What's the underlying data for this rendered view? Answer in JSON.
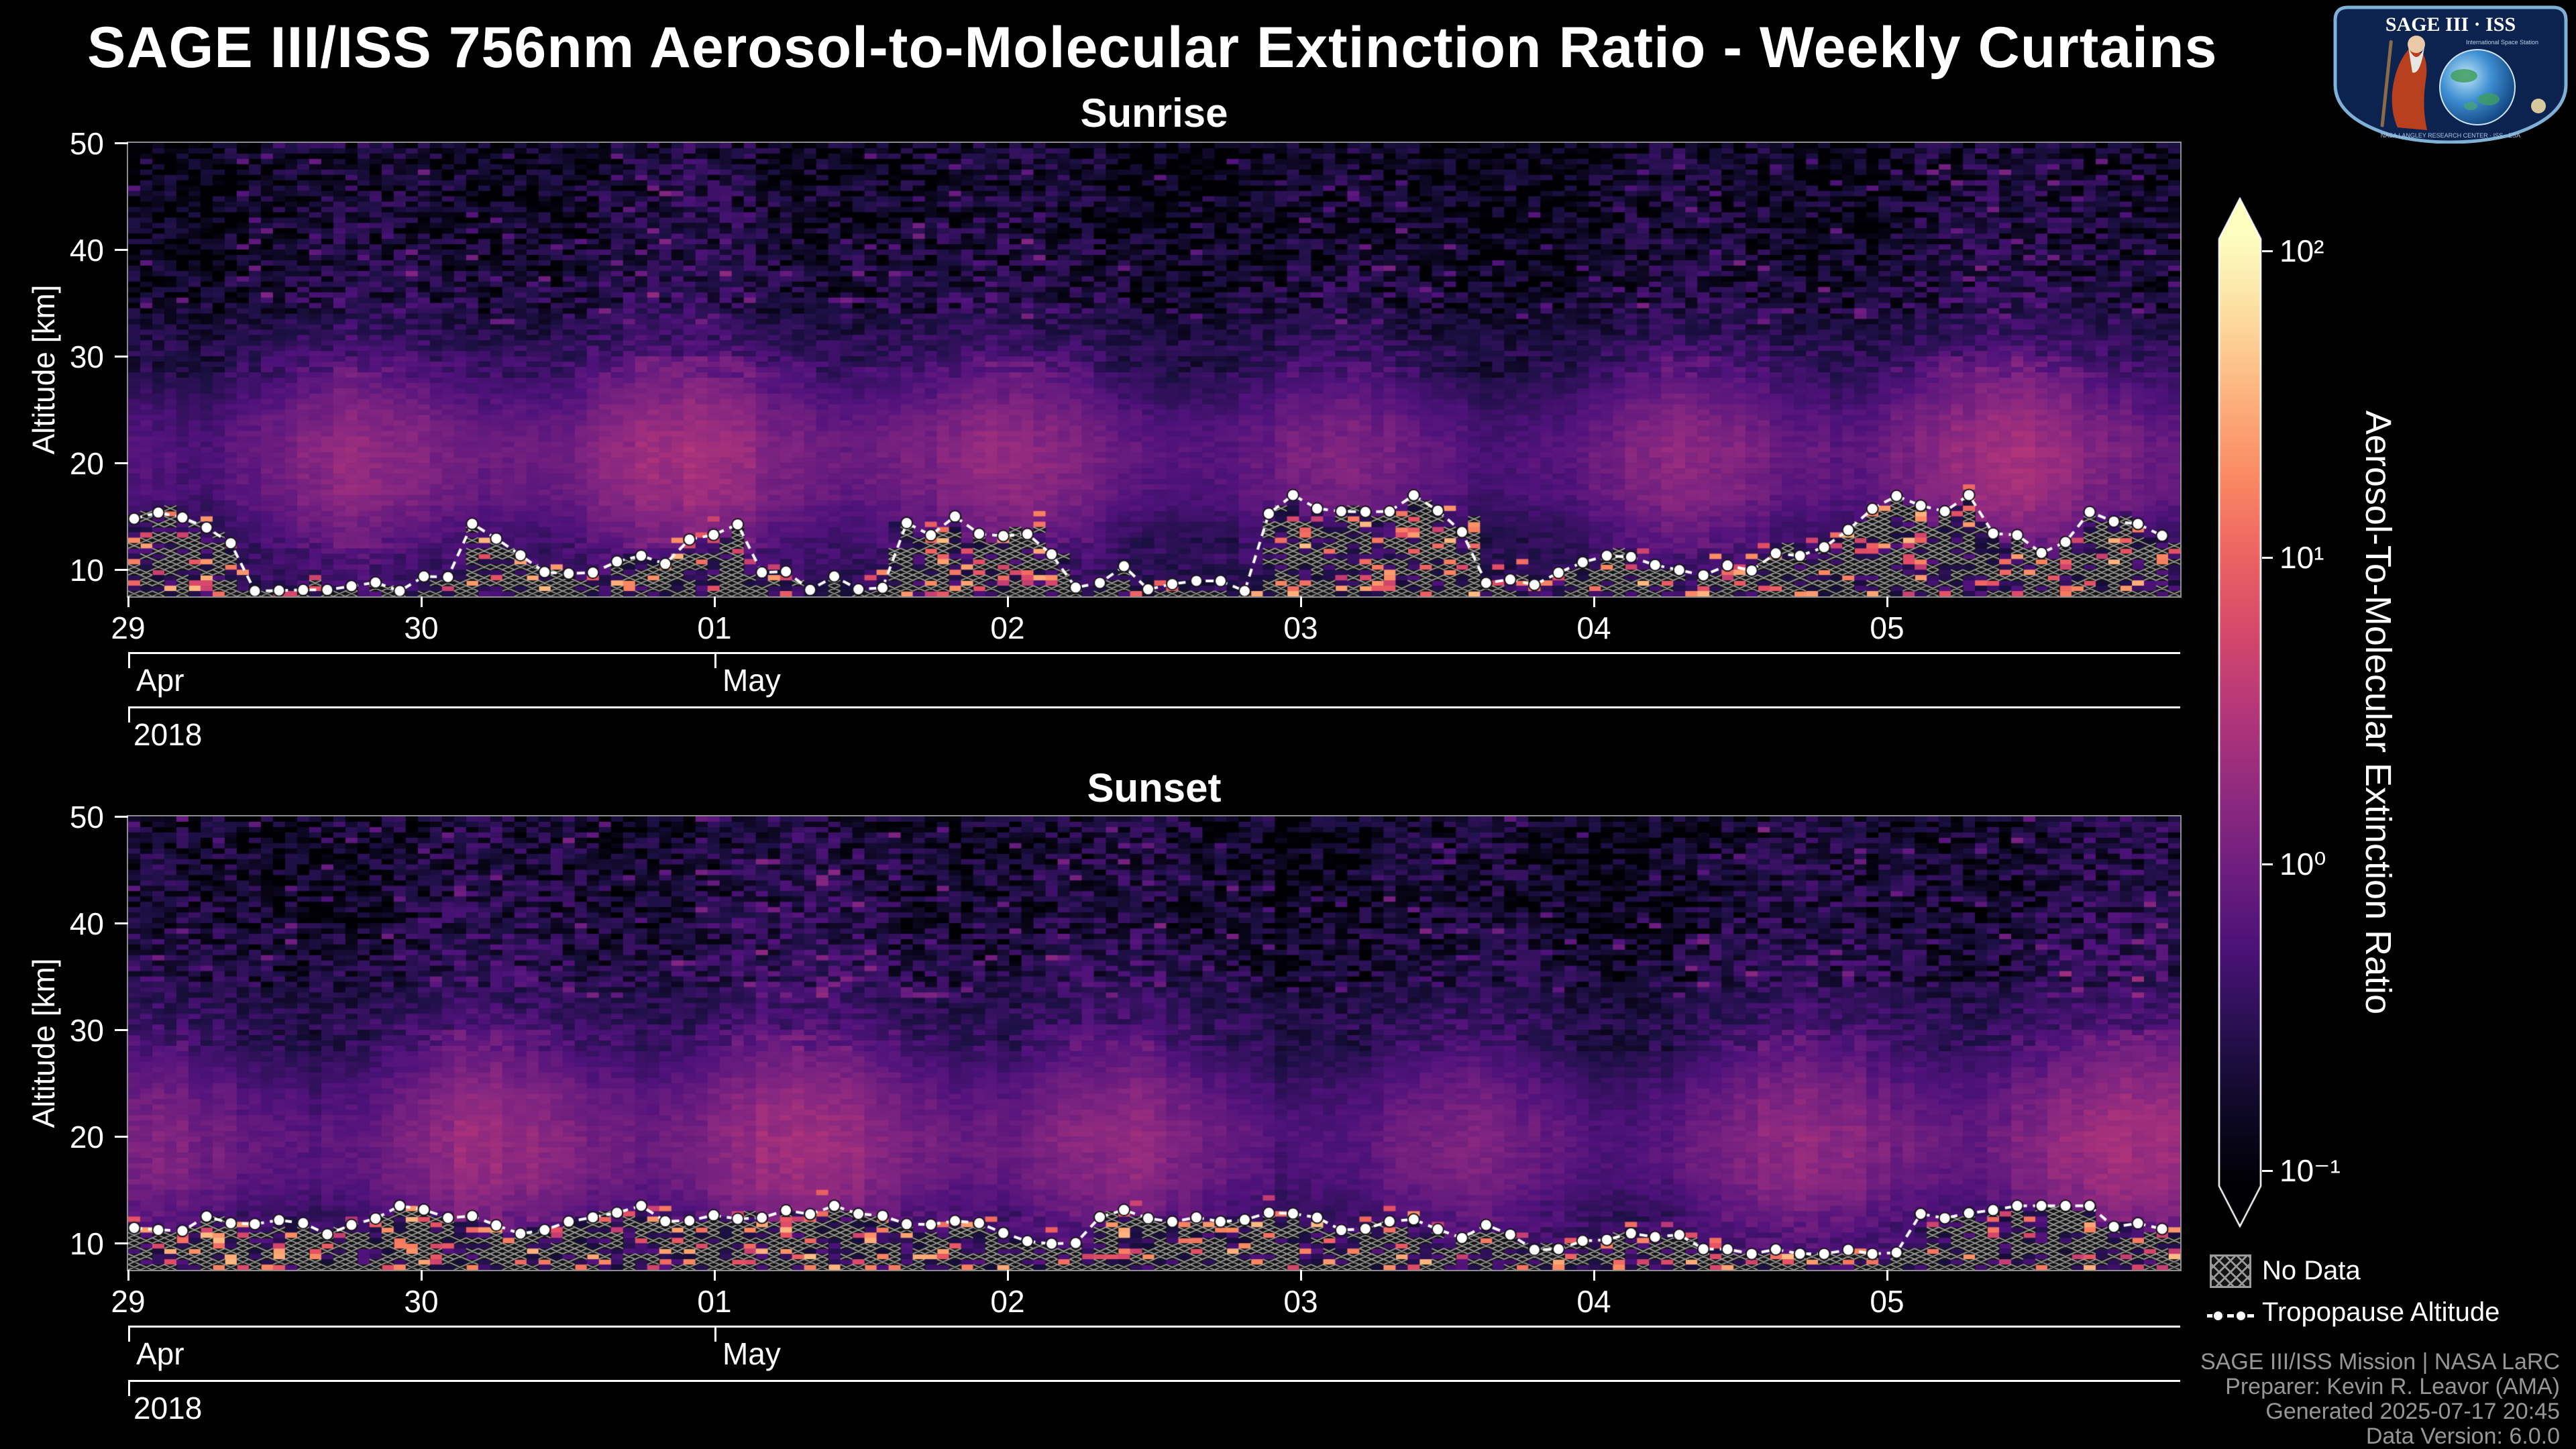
{
  "title": "SAGE III/ISS 756nm Aerosol-to-Molecular Extinction Ratio - Weekly Curtains",
  "logo": {
    "name": "SAGE III · ISS",
    "station": "International Space Station",
    "ring": "NASA LANGLEY RESEARCH CENTER · ISS · ESA"
  },
  "panels": [
    {
      "title": "Sunrise"
    },
    {
      "title": "Sunset"
    }
  ],
  "yaxis": {
    "label": "Altitude [km]",
    "tick_values": [
      50,
      40,
      30,
      20,
      10
    ]
  },
  "xaxis": {
    "day_ticks": [
      "29",
      "30",
      "01",
      "02",
      "03",
      "04",
      "05"
    ],
    "months": [
      {
        "label": "Apr",
        "frac": 0
      },
      {
        "label": "May",
        "frac": 0.2857
      }
    ],
    "year": "2018"
  },
  "colorbar": {
    "label": "Aerosol-To-Molecular Extinction Ratio",
    "ticks": [
      {
        "label": "10²",
        "log": 2
      },
      {
        "label": "10¹",
        "log": 1
      },
      {
        "label": "10⁰",
        "log": 0
      },
      {
        "label": "10⁻¹",
        "log": -1
      }
    ]
  },
  "legend": {
    "no_data": "No Data",
    "tropopause": "Tropopause Altitude"
  },
  "footer": {
    "lines": [
      "SAGE III/ISS Mission | NASA LaRC",
      "Preparer: Kevin R. Leavor (AMA)",
      "Generated 2025-07-17 20:45",
      "Data Version: 6.0.0"
    ]
  },
  "chart_data": {
    "type": "heatmap",
    "title": "SAGE III/ISS 756nm Aerosol-to-Molecular Extinction Ratio - Weekly Curtains",
    "shared": {
      "x_axis": {
        "start_date": "2018-04-29",
        "end_date": "2018-05-06",
        "day_ticks": [
          "29",
          "30",
          "01",
          "02",
          "03",
          "04",
          "05"
        ],
        "month_ticks": [
          {
            "label": "Apr",
            "frac": 0
          },
          {
            "label": "May",
            "frac": 0.2857
          }
        ],
        "year": "2018"
      },
      "y_axis": {
        "label": "Altitude [km]",
        "range_km": [
          7.5,
          50
        ],
        "ticks": [
          10,
          20,
          30,
          40,
          50
        ]
      },
      "color_axis": {
        "label": "Aerosol-To-Molecular Extinction Ratio",
        "scale": "log",
        "range": [
          0.1,
          100
        ],
        "tick_values": [
          0.1,
          1,
          10,
          100
        ],
        "colormap": "magma",
        "extend": "both"
      }
    },
    "panels": [
      {
        "title": "Sunrise",
        "vertical_structure_estimate": [
          {
            "altitude_km": [
              35,
              50
            ],
            "ratio": [
              0.1,
              0.35
            ],
            "appearance": "dark, speckled noise"
          },
          {
            "altitude_km": [
              26,
              35
            ],
            "ratio": [
              0.2,
              0.6
            ],
            "appearance": "dark purple brightening downward"
          },
          {
            "altitude_km": [
              14,
              26
            ],
            "ratio": [
              0.7,
              2.0
            ],
            "appearance": "bright magenta aerosol band"
          },
          {
            "altitude_km": [
              7.5,
              14
            ],
            "ratio": [
              0.2,
              30
            ],
            "appearance": "mixed; sporadic bright orange cells and hatched no-data gaps below tropopause"
          }
        ],
        "tropopause_altitude_km": {
          "min": 8,
          "max": 17
        }
      },
      {
        "title": "Sunset",
        "vertical_structure_estimate": [
          {
            "altitude_km": [
              35,
              50
            ],
            "ratio": [
              0.12,
              0.4
            ],
            "appearance": "dark, speckled noise"
          },
          {
            "altitude_km": [
              26,
              35
            ],
            "ratio": [
              0.2,
              0.7
            ],
            "appearance": "mottled purple with occasional brighter columns"
          },
          {
            "altitude_km": [
              13,
              26
            ],
            "ratio": [
              0.7,
              2.0
            ],
            "appearance": "bright magenta aerosol band"
          },
          {
            "altitude_km": [
              7.5,
              13
            ],
            "ratio": [
              0.2,
              30
            ],
            "appearance": "mixed; sporadic bright orange cells and hatched no-data gaps below tropopause"
          }
        ],
        "tropopause_altitude_km": {
          "min": 9,
          "max": 13.5
        }
      }
    ],
    "overlays": [
      {
        "name": "No Data",
        "style": "gray cross-hatched cells"
      },
      {
        "name": "Tropopause Altitude",
        "style": "white filled circles connected by dashed white line"
      }
    ]
  }
}
